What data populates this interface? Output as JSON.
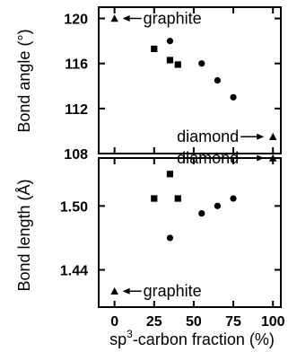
{
  "chart_data": [
    {
      "type": "scatter",
      "ylabel": "Bond angle (°)",
      "ylim": [
        108,
        121
      ],
      "yticks": [
        108,
        112,
        116,
        120
      ],
      "xlim": [
        -10,
        105
      ],
      "series": [
        {
          "marker": "triangle",
          "points": [
            [
              0,
              120
            ],
            [
              100,
              109.5
            ]
          ]
        },
        {
          "marker": "square",
          "points": [
            [
              25,
              117.3
            ],
            [
              35,
              116.3
            ],
            [
              40,
              115.9
            ]
          ]
        },
        {
          "marker": "circle",
          "points": [
            [
              35,
              118
            ],
            [
              55,
              116
            ],
            [
              65,
              114.5
            ],
            [
              75,
              113
            ]
          ]
        }
      ],
      "annotations": [
        {
          "text": "graphite",
          "arrow_to": [
            0,
            120
          ]
        },
        {
          "text": "diamond",
          "arrow_to": [
            100,
            109.5
          ]
        }
      ]
    },
    {
      "type": "scatter",
      "ylabel": "Bond length (Å)",
      "ylim": [
        1.405,
        1.545
      ],
      "yticks": [
        1.44,
        1.5
      ],
      "xlim": [
        -10,
        105
      ],
      "xticks": [
        0,
        25,
        50,
        75,
        100
      ],
      "xlabel_base": "sp",
      "xlabel_sup": "3",
      "xlabel_rest": "-carbon fraction (%)",
      "series": [
        {
          "marker": "triangle",
          "points": [
            [
              0,
              1.42
            ],
            [
              100,
              1.545
            ]
          ]
        },
        {
          "marker": "square",
          "points": [
            [
              25,
              1.507
            ],
            [
              35,
              1.53
            ],
            [
              40,
              1.507
            ]
          ]
        },
        {
          "marker": "circle",
          "points": [
            [
              35,
              1.47
            ],
            [
              55,
              1.493
            ],
            [
              65,
              1.5
            ],
            [
              75,
              1.507
            ]
          ]
        }
      ],
      "annotations": [
        {
          "text": "diamond",
          "arrow_to": [
            100,
            1.545
          ]
        },
        {
          "text": "graphite",
          "arrow_to": [
            0,
            1.42
          ]
        }
      ]
    }
  ]
}
